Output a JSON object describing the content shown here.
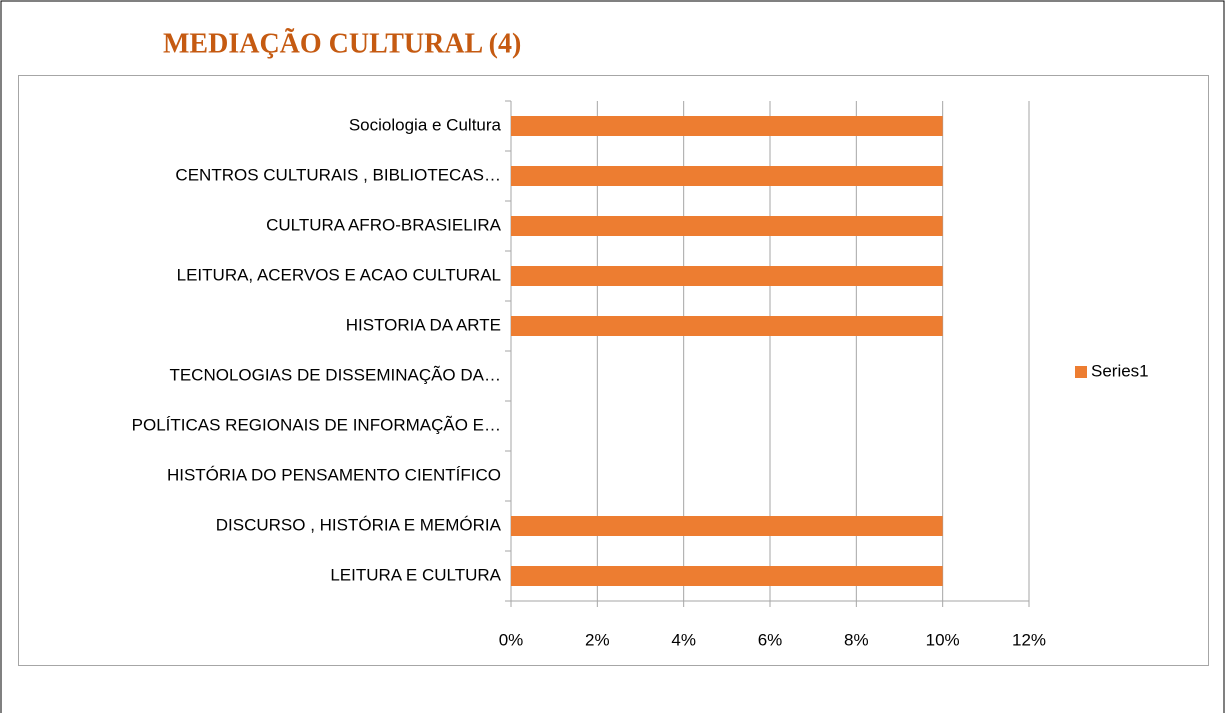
{
  "chart_data": {
    "type": "bar",
    "orientation": "horizontal",
    "title": "MEDIAÇÃO CULTURAL (4)",
    "categories": [
      "Sociologia e Cultura",
      "CENTROS CULTURAIS , BIBLIOTECAS…",
      "CULTURA AFRO-BRASIELIRA",
      "LEITURA, ACERVOS E ACAO CULTURAL",
      "HISTORIA DA ARTE",
      "TECNOLOGIAS DE DISSEMINAÇÃO DA…",
      "POLÍTICAS REGIONAIS DE INFORMAÇÃO E…",
      "HISTÓRIA DO PENSAMENTO CIENTÍFICO",
      "DISCURSO , HISTÓRIA E MEMÓRIA",
      "LEITURA E CULTURA"
    ],
    "series": [
      {
        "name": "Series1",
        "color": "#ed7d31",
        "values": [
          10,
          10,
          10,
          10,
          10,
          0,
          0,
          0,
          10,
          10
        ]
      }
    ],
    "xlim": [
      0,
      12
    ],
    "xticks": [
      {
        "value": 0,
        "label": "0%"
      },
      {
        "value": 2,
        "label": "2%"
      },
      {
        "value": 4,
        "label": "4%"
      },
      {
        "value": 6,
        "label": "6%"
      },
      {
        "value": 8,
        "label": "8%"
      },
      {
        "value": 10,
        "label": "10%"
      },
      {
        "value": 12,
        "label": "12%"
      }
    ],
    "grid": true,
    "legend": "right"
  }
}
